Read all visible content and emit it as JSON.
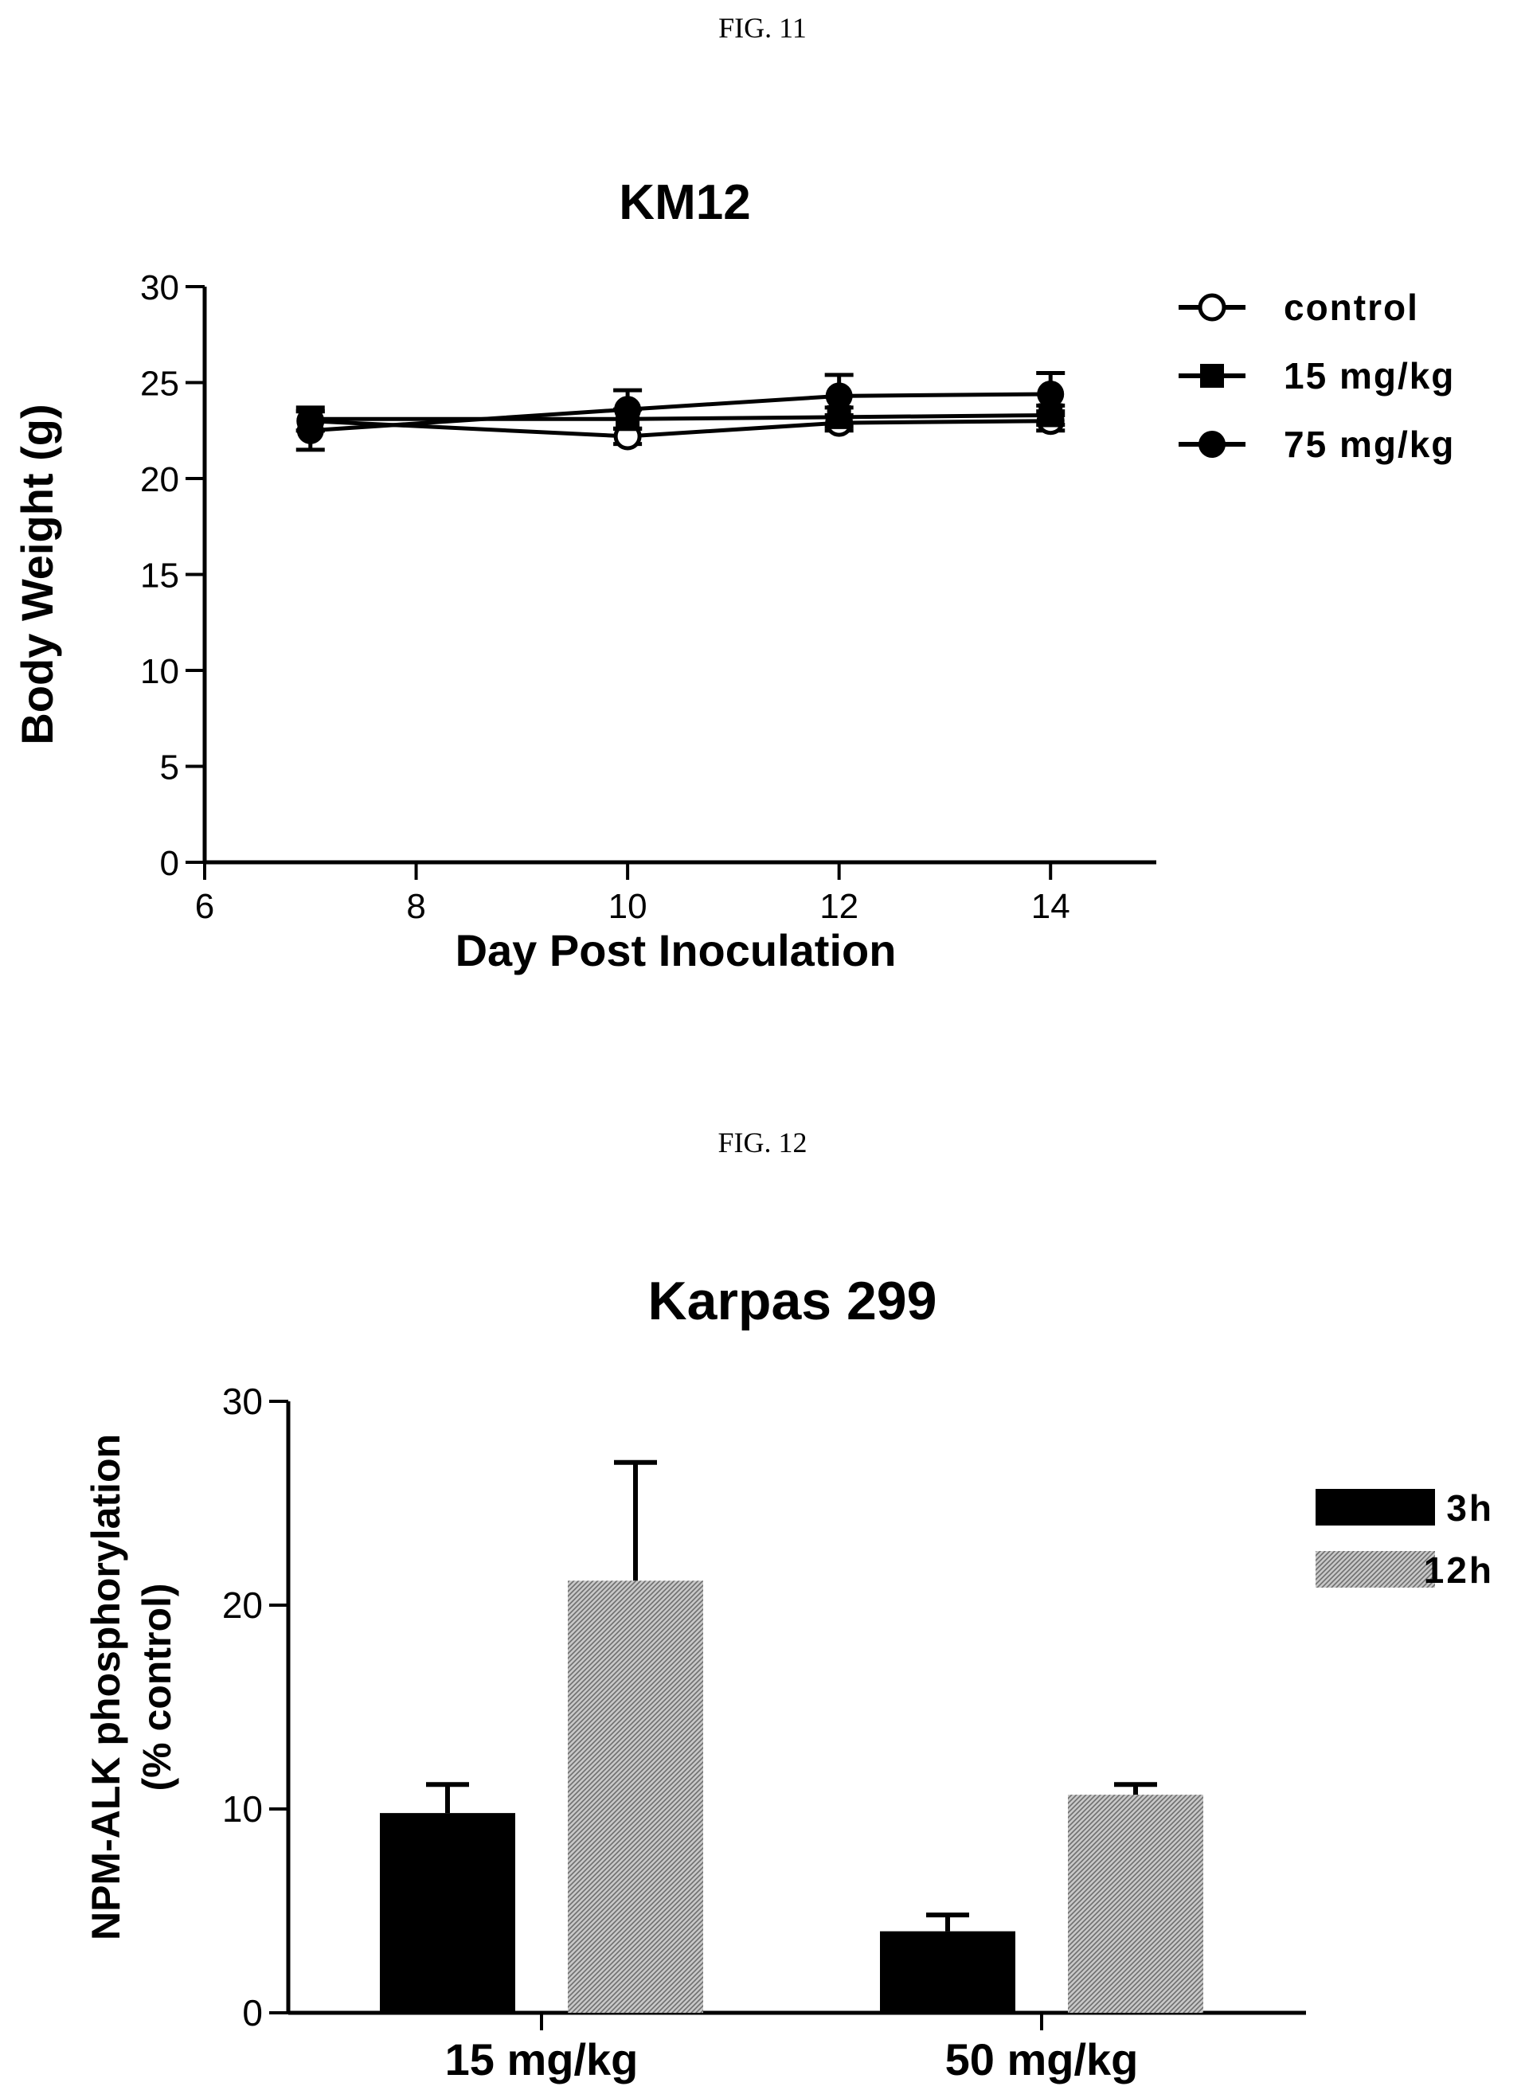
{
  "fig11_label": "FIG. 11",
  "fig12_label": "FIG. 12",
  "chart_data": [
    {
      "type": "line",
      "title": "KM12",
      "xlabel": "Day Post Inoculation",
      "ylabel": "Body Weight (g)",
      "xlim": [
        6,
        15
      ],
      "ylim": [
        0,
        30
      ],
      "xticks": [
        6,
        8,
        10,
        12,
        14
      ],
      "yticks": [
        0,
        5,
        10,
        15,
        20,
        25,
        30
      ],
      "x": [
        7,
        10,
        12,
        14
      ],
      "legend_position": "top-right",
      "series": [
        {
          "name": "control",
          "marker": "open-circle",
          "values": [
            23.0,
            22.2,
            22.9,
            23.0
          ],
          "errors": [
            0.5,
            0.4,
            0.4,
            0.5
          ]
        },
        {
          "name": "15 mg/kg",
          "marker": "filled-square",
          "values": [
            23.1,
            23.1,
            23.2,
            23.3
          ],
          "errors": [
            0.6,
            0.5,
            0.5,
            0.5
          ]
        },
        {
          "name": "75 mg/kg",
          "marker": "filled-circle",
          "values": [
            22.5,
            23.6,
            24.3,
            24.4
          ],
          "errors": [
            1.0,
            1.0,
            1.1,
            1.1
          ]
        }
      ]
    },
    {
      "type": "bar",
      "title": "Karpas 299",
      "xlabel": "",
      "ylabel_lines": [
        "NPM-ALK phosphorylation",
        "(% control)"
      ],
      "categories": [
        "15 mg/kg",
        "50 mg/kg"
      ],
      "ylim": [
        0,
        30
      ],
      "yticks": [
        0,
        10,
        20,
        30
      ],
      "legend_position": "right",
      "series": [
        {
          "name": "3h",
          "fill": "solid-black",
          "values": [
            9.8,
            4.0
          ],
          "errors": [
            1.4,
            0.8
          ]
        },
        {
          "name": "12h",
          "fill": "hatched-gray",
          "values": [
            21.2,
            10.7
          ],
          "errors": [
            5.8,
            0.5
          ]
        }
      ]
    }
  ]
}
